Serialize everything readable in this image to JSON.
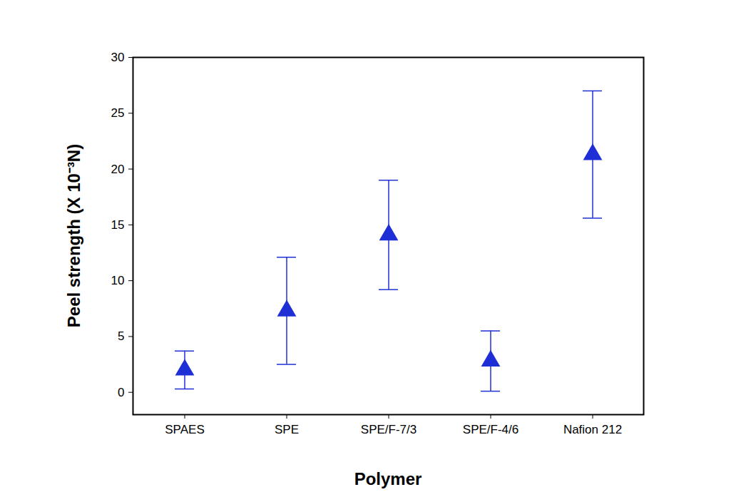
{
  "chart_data": {
    "type": "scatter",
    "x_label": "Polymer",
    "y_label": "Peel strength (X 10⁻³N)",
    "categories": [
      "SPAES",
      "SPE",
      "SPE/F-7/3",
      "SPE/F-4/6",
      "Nafion 212"
    ],
    "values": [
      2.0,
      7.3,
      14.1,
      2.8,
      21.3
    ],
    "errors": [
      1.7,
      4.8,
      4.9,
      2.7,
      5.7
    ],
    "color": "#1f2fd6",
    "marker": "triangle",
    "ylim": [
      -2,
      30
    ],
    "yticks": [
      0,
      5,
      10,
      15,
      20,
      25,
      30
    ],
    "grid": false
  }
}
